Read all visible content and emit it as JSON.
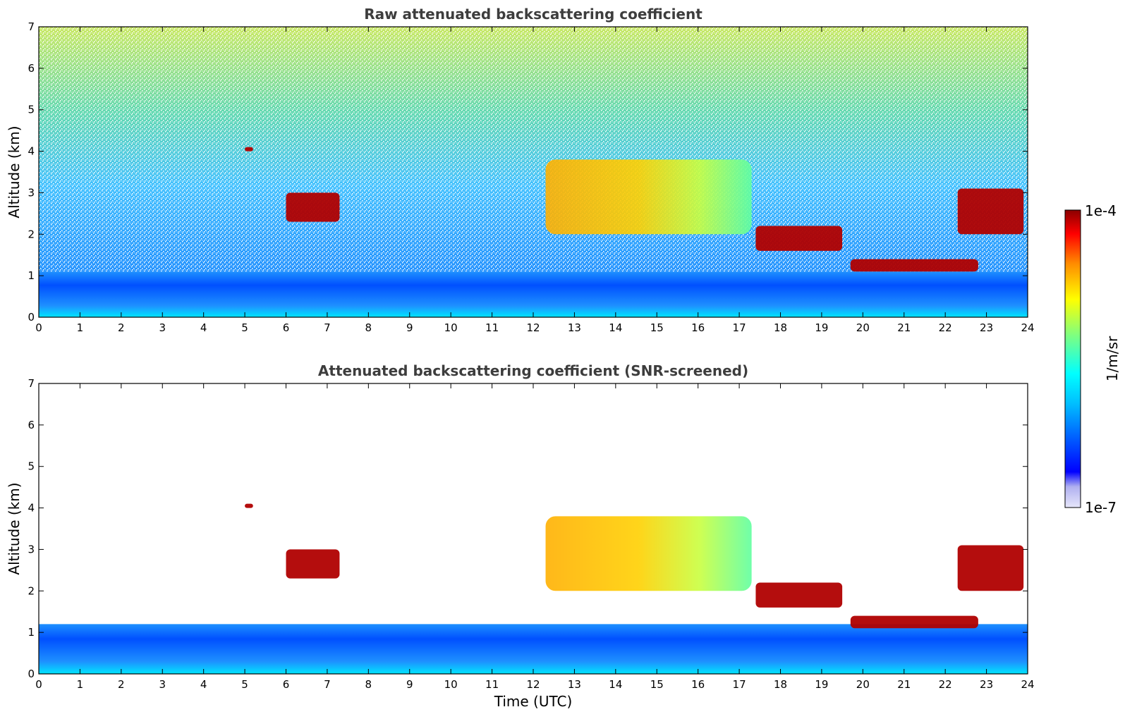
{
  "chart_data": [
    {
      "type": "heatmap",
      "title": "Raw attenuated backscattering coefficient",
      "xlabel": "",
      "ylabel": "Altitude (km)",
      "xlim": [
        0,
        24
      ],
      "ylim": [
        0,
        7
      ],
      "xticks": [
        "0",
        "1",
        "2",
        "3",
        "4",
        "5",
        "6",
        "7",
        "8",
        "9",
        "10",
        "11",
        "12",
        "13",
        "14",
        "15",
        "16",
        "17",
        "18",
        "19",
        "20",
        "21",
        "22",
        "23",
        "24"
      ],
      "yticks": [
        "0",
        "1",
        "2",
        "3",
        "4",
        "5",
        "6",
        "7"
      ],
      "scale": "log",
      "grid": false,
      "features": [
        {
          "kind": "boundary_layer",
          "x": [
            0,
            24
          ],
          "y": [
            0,
            1.1
          ]
        },
        {
          "kind": "noise_field",
          "x": [
            0,
            24
          ],
          "y": [
            1.1,
            7
          ]
        },
        {
          "kind": "aerosol_layer",
          "x": [
            12.3,
            17.3
          ],
          "y": [
            2.0,
            3.8
          ]
        },
        {
          "kind": "cloud",
          "x": [
            6.0,
            7.3
          ],
          "y": [
            2.3,
            3.0
          ]
        },
        {
          "kind": "cloud",
          "x": [
            5.0,
            5.2
          ],
          "y": [
            4.0,
            4.1
          ]
        },
        {
          "kind": "cloud",
          "x": [
            17.4,
            19.5
          ],
          "y": [
            1.6,
            2.2
          ]
        },
        {
          "kind": "cloud",
          "x": [
            19.7,
            22.8
          ],
          "y": [
            1.1,
            1.4
          ]
        },
        {
          "kind": "cloud",
          "x": [
            22.3,
            23.9
          ],
          "y": [
            2.0,
            3.1
          ]
        }
      ]
    },
    {
      "type": "heatmap",
      "title": "Attenuated backscattering coefficient (SNR-screened)",
      "xlabel": "Time (UTC)",
      "ylabel": "Altitude (km)",
      "xlim": [
        0,
        24
      ],
      "ylim": [
        0,
        7
      ],
      "xticks": [
        "0",
        "1",
        "2",
        "3",
        "4",
        "5",
        "6",
        "7",
        "8",
        "9",
        "10",
        "11",
        "12",
        "13",
        "14",
        "15",
        "16",
        "17",
        "18",
        "19",
        "20",
        "21",
        "22",
        "23",
        "24"
      ],
      "yticks": [
        "0",
        "1",
        "2",
        "3",
        "4",
        "5",
        "6",
        "7"
      ],
      "scale": "log",
      "grid": false,
      "features": [
        {
          "kind": "boundary_layer",
          "x": [
            0,
            24
          ],
          "y": [
            0,
            1.2
          ]
        },
        {
          "kind": "aerosol_layer",
          "x": [
            12.3,
            17.3
          ],
          "y": [
            2.0,
            3.8
          ]
        },
        {
          "kind": "cloud",
          "x": [
            6.0,
            7.3
          ],
          "y": [
            2.3,
            3.0
          ]
        },
        {
          "kind": "cloud",
          "x": [
            5.0,
            5.2
          ],
          "y": [
            4.0,
            4.1
          ]
        },
        {
          "kind": "cloud",
          "x": [
            17.4,
            19.5
          ],
          "y": [
            1.6,
            2.2
          ]
        },
        {
          "kind": "cloud",
          "x": [
            19.7,
            22.8
          ],
          "y": [
            1.1,
            1.4
          ]
        },
        {
          "kind": "cloud",
          "x": [
            22.3,
            23.9
          ],
          "y": [
            2.0,
            3.1
          ]
        }
      ]
    }
  ],
  "colorbar": {
    "label": "1/m/sr",
    "max_label": "1e-4",
    "min_label": "1e-7",
    "colors": [
      "#e6e6fa",
      "#0000ff",
      "#00bfff",
      "#00ffff",
      "#7fff7f",
      "#ffff00",
      "#ff8c00",
      "#ff0000",
      "#8b0000"
    ]
  }
}
